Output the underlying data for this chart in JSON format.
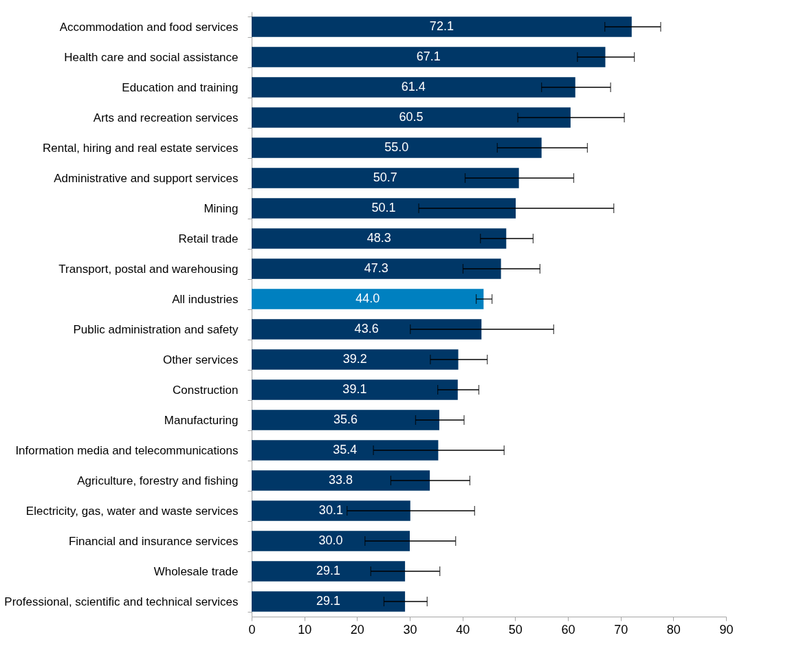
{
  "chart_data": {
    "type": "bar",
    "orientation": "horizontal",
    "categories": [
      "Accommodation and food services",
      "Health care and social assistance",
      "Education and training",
      "Arts and recreation services",
      "Rental, hiring and real estate services",
      "Administrative and support services",
      "Mining",
      "Retail trade",
      "Transport, postal and warehousing",
      "All industries",
      "Public administration and safety",
      "Other services ",
      "Construction",
      "Manufacturing",
      "Information media and telecommunications",
      "Agriculture, forestry and fishing",
      "Electricity, gas, water and waste services",
      "Financial and insurance services",
      "Wholesale trade",
      "Professional, scientific and technical services"
    ],
    "values": [
      72.1,
      67.1,
      61.4,
      60.5,
      55.0,
      50.7,
      50.1,
      48.3,
      47.3,
      44.0,
      43.6,
      39.2,
      39.1,
      35.6,
      35.4,
      33.8,
      30.1,
      30.0,
      29.1,
      29.1
    ],
    "value_labels": [
      "72.1",
      "67.1",
      "61.4",
      "60.5",
      "55.0",
      "50.7",
      "50.1",
      "48.3",
      "47.3",
      "44.0",
      "43.6",
      "39.2",
      "39.1",
      "35.6",
      "35.4",
      "33.8",
      "30.1",
      "30.0",
      "29.1",
      "29.1"
    ],
    "colors": [
      "#003767",
      "#003767",
      "#003767",
      "#003767",
      "#003767",
      "#003767",
      "#003767",
      "#003767",
      "#003767",
      "#0080c0",
      "#003767",
      "#003767",
      "#003767",
      "#003767",
      "#003767",
      "#003767",
      "#003767",
      "#003767",
      "#003767",
      "#003767"
    ],
    "errors": [
      [
        67.0,
        77.6
      ],
      [
        61.8,
        72.6
      ],
      [
        55.0,
        68.1
      ],
      [
        50.5,
        70.7
      ],
      [
        46.6,
        63.7
      ],
      [
        40.5,
        61.1
      ],
      [
        31.7,
        68.7
      ],
      [
        43.4,
        53.4
      ],
      [
        40.1,
        54.7
      ],
      [
        42.6,
        45.6
      ],
      [
        30.1,
        57.3
      ],
      [
        33.9,
        44.7
      ],
      [
        35.3,
        43.1
      ],
      [
        31.1,
        40.3
      ],
      [
        23.1,
        47.9
      ],
      [
        26.4,
        41.4
      ],
      [
        18.1,
        42.3
      ],
      [
        21.5,
        38.7
      ],
      [
        22.6,
        35.7
      ],
      [
        25.1,
        33.3
      ]
    ],
    "xlim": [
      0,
      90
    ],
    "xticks": [
      0,
      10,
      20,
      30,
      40,
      50,
      60,
      70,
      80,
      90
    ],
    "grid": false
  }
}
